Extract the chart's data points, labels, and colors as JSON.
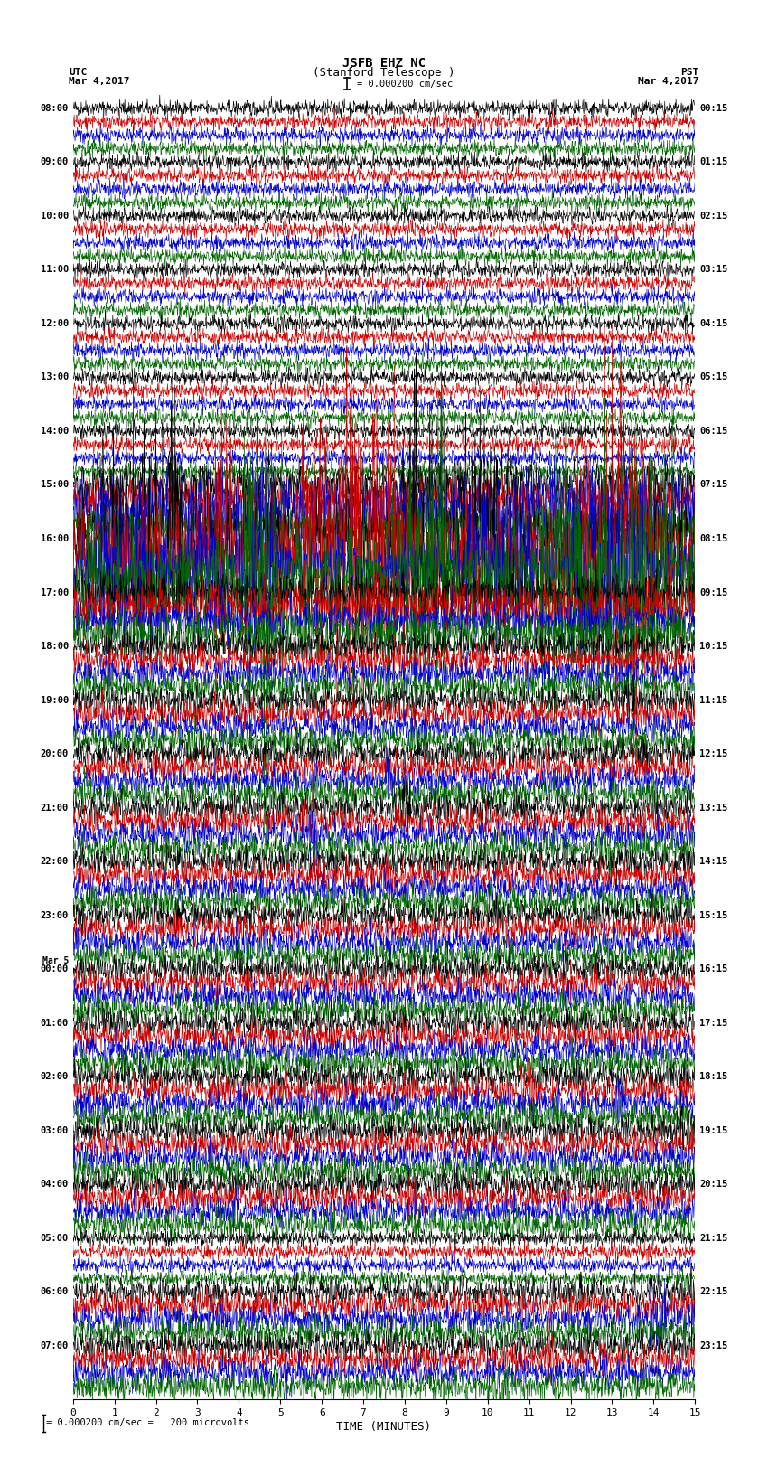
{
  "title_line1": "JSFB EHZ NC",
  "title_line2": "(Stanford Telescope )",
  "scale_text": "= 0.000200 cm/sec",
  "bottom_annotation": "= 0.000200 cm/sec =   200 microvolts",
  "utc_label": "UTC",
  "pst_label": "PST",
  "date_left": "Mar 4,2017",
  "date_right": "Mar 4,2017",
  "xlabel": "TIME (MINUTES)",
  "xmin": 0,
  "xmax": 15,
  "xticks": [
    0,
    1,
    2,
    3,
    4,
    5,
    6,
    7,
    8,
    9,
    10,
    11,
    12,
    13,
    14,
    15
  ],
  "trace_colors": [
    "#000000",
    "#cc0000",
    "#0000cc",
    "#006600"
  ],
  "background": "white",
  "n_minutes": 15,
  "sample_rate": 100,
  "n_hours": 24,
  "utc_hour_labels": [
    "08:00",
    "09:00",
    "10:00",
    "11:00",
    "12:00",
    "13:00",
    "14:00",
    "15:00",
    "16:00",
    "17:00",
    "18:00",
    "19:00",
    "20:00",
    "21:00",
    "22:00",
    "23:00",
    "00:00",
    "01:00",
    "02:00",
    "03:00",
    "04:00",
    "05:00",
    "06:00",
    "07:00"
  ],
  "mar5_hour_idx": 16,
  "pst_hour_labels": [
    "00:15",
    "01:15",
    "02:15",
    "03:15",
    "04:15",
    "05:15",
    "06:15",
    "07:15",
    "08:15",
    "09:15",
    "10:15",
    "11:15",
    "12:15",
    "13:15",
    "14:15",
    "15:15",
    "16:15",
    "17:15",
    "18:15",
    "19:15",
    "20:15",
    "21:15",
    "22:15",
    "23:15"
  ],
  "noise_amp_quiet": 0.08,
  "noise_amp_active": 0.35,
  "active_hours": [
    7,
    8,
    9
  ],
  "medium_hours": [
    10,
    11,
    12,
    13,
    14,
    15,
    16,
    17,
    18,
    19,
    20,
    22,
    23
  ],
  "noise_amp_medium": 0.15,
  "lw": 0.45
}
